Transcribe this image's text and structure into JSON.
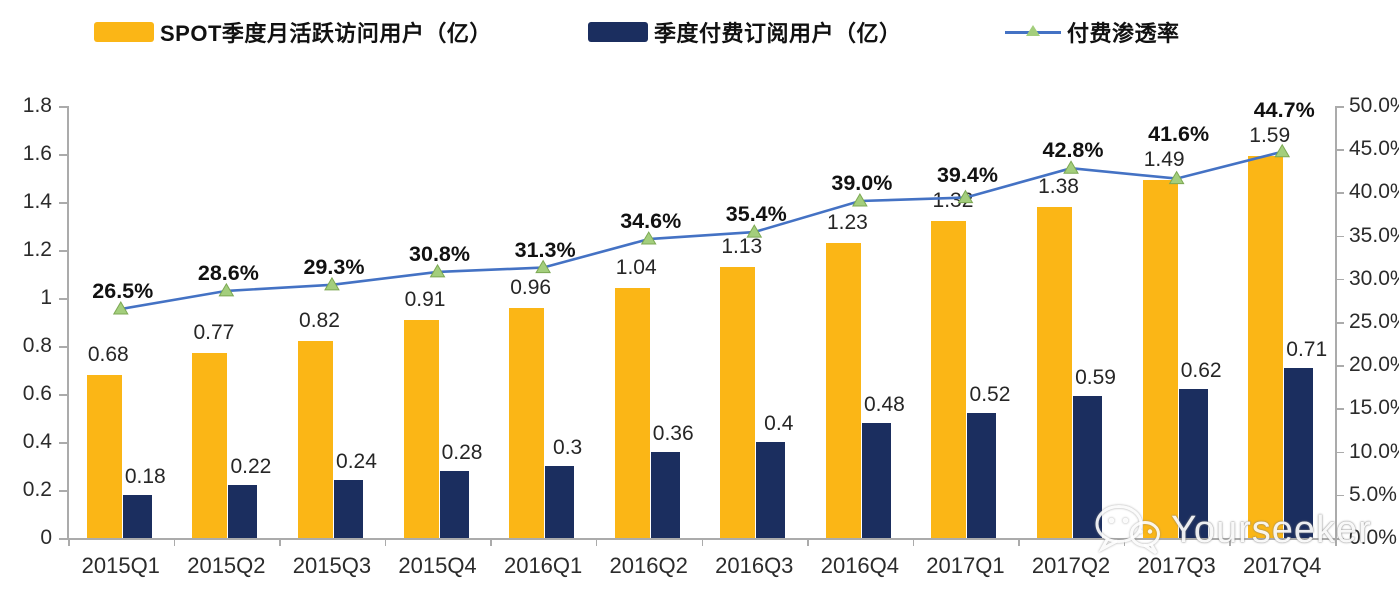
{
  "legend": [
    {
      "label": "SPOT季度月活跃访问用户（亿）",
      "type": "bar"
    },
    {
      "label": "季度付费订阅用户（亿）",
      "type": "bar"
    },
    {
      "label": "付费渗透率",
      "type": "line"
    }
  ],
  "colors": {
    "bar_mau": "#FBB616",
    "bar_sub": "#1B2E5F",
    "line": "#4472C4",
    "marker_fill": "#A3CE7C",
    "marker_stroke": "#7CA853",
    "axis": "#ABABAB",
    "label_text": "#262626"
  },
  "chart_data": {
    "type": "bar",
    "subtype": "grouped bars with overlaid line (dual axis)",
    "categories": [
      "2015Q1",
      "2015Q2",
      "2015Q3",
      "2015Q4",
      "2016Q1",
      "2016Q2",
      "2016Q3",
      "2016Q4",
      "2017Q1",
      "2017Q2",
      "2017Q3",
      "2017Q4"
    ],
    "series": [
      {
        "name": "SPOT季度月活跃访问用户（亿）",
        "type": "bar",
        "axis": "left",
        "values": [
          0.68,
          0.77,
          0.82,
          0.91,
          0.96,
          1.04,
          1.13,
          1.23,
          1.32,
          1.38,
          1.49,
          1.59
        ],
        "labels": [
          "0.68",
          "0.77",
          "0.82",
          "0.91",
          "0.96",
          "1.04",
          "1.13",
          "1.23",
          "1.32",
          "1.38",
          "1.49",
          "1.59"
        ]
      },
      {
        "name": "季度付费订阅用户（亿）",
        "type": "bar",
        "axis": "left",
        "values": [
          0.18,
          0.22,
          0.24,
          0.28,
          0.3,
          0.36,
          0.4,
          0.48,
          0.52,
          0.59,
          0.62,
          0.71
        ],
        "labels": [
          "0.18",
          "0.22",
          "0.24",
          "0.28",
          "0.3",
          "0.36",
          "0.4",
          "0.48",
          "0.52",
          "0.59",
          "0.62",
          "0.71"
        ]
      },
      {
        "name": "付费渗透率",
        "type": "line",
        "axis": "right",
        "values_pct": [
          26.5,
          28.6,
          29.3,
          30.8,
          31.3,
          34.6,
          35.4,
          39.0,
          39.4,
          42.8,
          41.6,
          44.7
        ],
        "labels": [
          "26.5%",
          "28.6%",
          "29.3%",
          "30.8%",
          "31.3%",
          "34.6%",
          "35.4%",
          "39.0%",
          "39.4%",
          "42.8%",
          "41.6%",
          "44.7%"
        ]
      }
    ],
    "left_axis": {
      "min": 0,
      "max": 1.8,
      "step": 0.2,
      "ticks": [
        "0",
        "0.2",
        "0.4",
        "0.6",
        "0.8",
        "1",
        "1.2",
        "1.4",
        "1.6",
        "1.8"
      ]
    },
    "right_axis": {
      "min": 0,
      "max": 50,
      "step": 5,
      "ticks": [
        "0.0%",
        "5.0%",
        "10.0%",
        "15.0%",
        "20.0%",
        "25.0%",
        "30.0%",
        "35.0%",
        "40.0%",
        "45.0%",
        "50.0%"
      ]
    },
    "grid": false,
    "legend_position": "top"
  },
  "watermark": {
    "text": "Yourseeker",
    "icon": "wechat-icon"
  }
}
